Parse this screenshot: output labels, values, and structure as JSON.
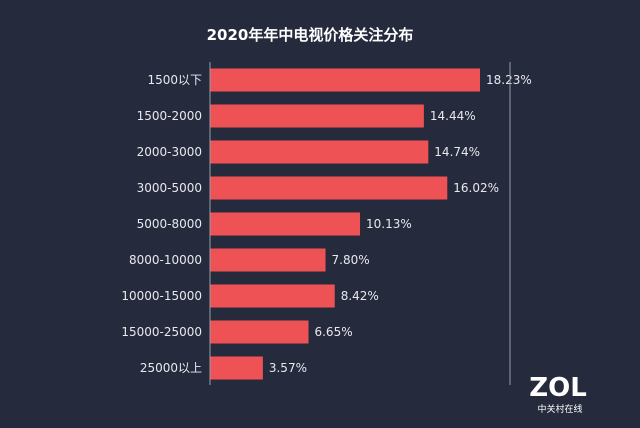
{
  "chart_data": {
    "type": "bar",
    "orientation": "horizontal",
    "title": "2020年年中电视价格关注分布",
    "categories": [
      "1500以下",
      "1500-2000",
      "2000-3000",
      "3000-5000",
      "5000-8000",
      "8000-10000",
      "10000-15000",
      "15000-25000",
      "25000以上"
    ],
    "values": [
      18.23,
      14.44,
      14.74,
      16.02,
      10.13,
      7.8,
      8.42,
      6.65,
      3.57
    ],
    "value_labels": [
      "18.23%",
      "14.44%",
      "14.74%",
      "16.02%",
      "10.13%",
      "7.80%",
      "8.42%",
      "6.65%",
      "3.57%"
    ],
    "xlim": [
      0,
      20
    ],
    "bar_color": "#ef5254"
  },
  "logo": {
    "main": "ZOL",
    "sub": "中关村在线"
  }
}
